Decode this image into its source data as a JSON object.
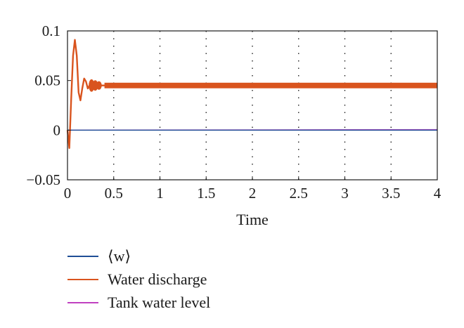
{
  "chart_data": {
    "type": "line",
    "title": "",
    "xlabel": "Time",
    "ylabel": "",
    "xlim": [
      0,
      4
    ],
    "ylim": [
      -0.05,
      0.1
    ],
    "x_ticks": [
      "0",
      "0.5",
      "1",
      "1.5",
      "2",
      "2.5",
      "3",
      "3.5",
      "4"
    ],
    "y_ticks": [
      "0.1",
      "0.05",
      "0",
      "−0.05"
    ],
    "x_tick_values": [
      0,
      0.5,
      1,
      1.5,
      2,
      2.5,
      3,
      3.5,
      4
    ],
    "y_tick_values": [
      0.1,
      0.05,
      0,
      -0.05
    ],
    "grid": "vertical dotted",
    "legend_position": "bottom-left",
    "series": [
      {
        "name": "⟨w⟩",
        "color": "#1f4e96",
        "x": [
          0,
          4
        ],
        "y": [
          0,
          0
        ]
      },
      {
        "name": "Water discharge",
        "color": "#d9541e",
        "band_half_width": 0.0028,
        "x": [
          0,
          0.02,
          0.04,
          0.06,
          0.08,
          0.1,
          0.12,
          0.14,
          0.16,
          0.18,
          0.2,
          0.22,
          0.25,
          0.28,
          0.32,
          0.36,
          0.4,
          4
        ],
        "y": [
          0,
          -0.018,
          0.032,
          0.075,
          0.091,
          0.075,
          0.038,
          0.03,
          0.042,
          0.052,
          0.049,
          0.042,
          0.047,
          0.045,
          0.046,
          0.045,
          0.045,
          0.045
        ]
      },
      {
        "name": "Tank water level",
        "color": "#c040c0",
        "x": [
          0,
          4
        ],
        "y": [
          0,
          0.0005
        ]
      }
    ]
  }
}
